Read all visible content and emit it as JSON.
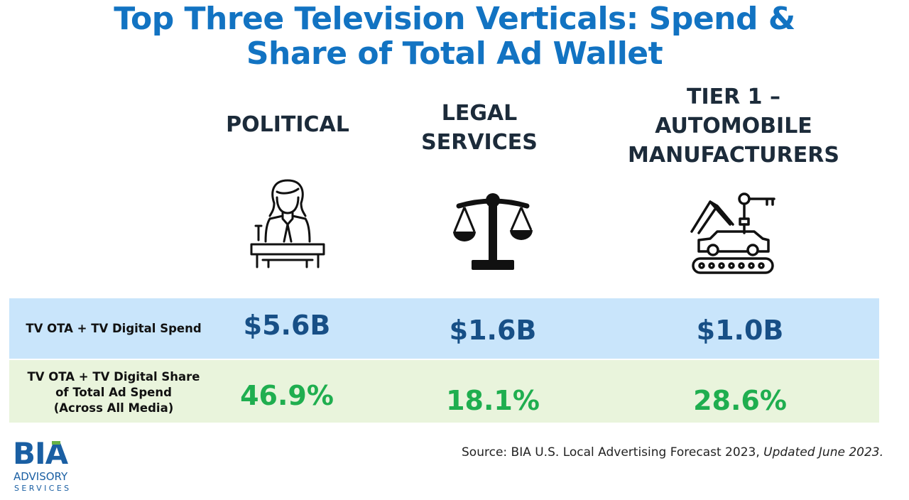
{
  "title": {
    "line1": "Top Three Television Verticals: Spend &",
    "line2": "Share of Total Ad Wallet"
  },
  "columns": [
    {
      "heading_lines": [
        "POLITICAL"
      ],
      "icon": "politician-podium-icon",
      "spend": "$5.6B",
      "share": "46.9%"
    },
    {
      "heading_lines": [
        "LEGAL",
        "SERVICES"
      ],
      "icon": "scales-of-justice-icon",
      "spend": "$1.6B",
      "share": "18.1%"
    },
    {
      "heading_lines": [
        "TIER 1 –",
        "AUTOMOBILE",
        "MANUFACTURERS"
      ],
      "icon": "robot-arm-car-assembly-icon",
      "spend": "$1.0B",
      "share": "28.6%"
    }
  ],
  "rows": {
    "spend_label": "TV OTA + TV Digital Spend",
    "share_label_lines": [
      "TV OTA + TV Digital Share",
      "of Total Ad Spend",
      "(Across All Media)"
    ]
  },
  "source": {
    "text": "Source: BIA U.S. Local Advertising Forecast 2023, ",
    "italic": "Updated June 2023."
  },
  "logo": {
    "name": "BIA",
    "line2": "ADVISORY",
    "line3": "SERVICES"
  },
  "colors": {
    "title": "#1273c2",
    "spend_row_bg": "#c9e5fb",
    "share_row_bg": "#e9f4dc",
    "spend_value": "#174f86",
    "share_value": "#1fae4f"
  }
}
